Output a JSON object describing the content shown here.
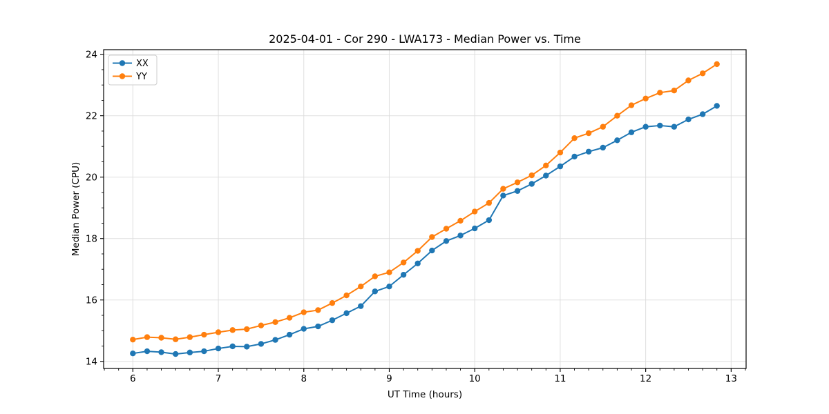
{
  "window": {
    "background": "#ffffff"
  },
  "chart_data": {
    "type": "line",
    "title": "2025-04-01 - Cor 290 - LWA173 - Median Power vs. Time",
    "xlabel": "UT Time (hours)",
    "ylabel": "Median Power (CPU)",
    "xlim": [
      5.658,
      13.175
    ],
    "ylim": [
      13.77,
      24.15
    ],
    "x_major_ticks": [
      6,
      7,
      8,
      9,
      10,
      11,
      12,
      13
    ],
    "y_major_ticks": [
      14,
      16,
      18,
      20,
      22,
      24
    ],
    "x_minor_interval": 0.166667,
    "y_minor_interval": 0.5,
    "grid": true,
    "legend_position": "upper-left",
    "x": [
      6.0,
      6.167,
      6.333,
      6.5,
      6.667,
      6.833,
      7.0,
      7.167,
      7.333,
      7.5,
      7.667,
      7.833,
      8.0,
      8.167,
      8.333,
      8.5,
      8.667,
      8.833,
      9.0,
      9.167,
      9.333,
      9.5,
      9.667,
      9.833,
      10.0,
      10.167,
      10.333,
      10.5,
      10.667,
      10.833,
      11.0,
      11.167,
      11.333,
      11.5,
      11.667,
      11.833,
      12.0,
      12.167,
      12.333,
      12.5,
      12.667,
      12.833
    ],
    "series": [
      {
        "name": "XX",
        "color": "#1f77b4",
        "values": [
          14.26,
          14.33,
          14.3,
          14.24,
          14.29,
          14.33,
          14.42,
          14.49,
          14.48,
          14.57,
          14.7,
          14.87,
          15.06,
          15.14,
          15.34,
          15.57,
          15.8,
          16.28,
          16.44,
          16.82,
          17.19,
          17.61,
          17.92,
          18.1,
          18.33,
          18.6,
          19.4,
          19.55,
          19.78,
          20.05,
          20.35,
          20.67,
          20.83,
          20.96,
          21.2,
          21.46,
          21.64,
          21.68,
          21.64,
          21.88,
          22.05,
          22.32
        ]
      },
      {
        "name": "YY",
        "color": "#ff7f0e",
        "values": [
          14.71,
          14.79,
          14.77,
          14.72,
          14.79,
          14.87,
          14.95,
          15.02,
          15.05,
          15.17,
          15.28,
          15.42,
          15.6,
          15.67,
          15.9,
          16.15,
          16.44,
          16.77,
          16.9,
          17.22,
          17.6,
          18.05,
          18.32,
          18.58,
          18.88,
          19.16,
          19.62,
          19.83,
          20.06,
          20.38,
          20.8,
          21.27,
          21.43,
          21.64,
          22.0,
          22.34,
          22.56,
          22.75,
          22.82,
          23.15,
          23.38,
          23.68
        ]
      }
    ],
    "colors": {
      "grid": "#dcdcdc",
      "spine": "#000000",
      "tick": "#000000",
      "text": "#000000",
      "legend_border": "#cccccc",
      "legend_background": "#ffffff"
    }
  }
}
